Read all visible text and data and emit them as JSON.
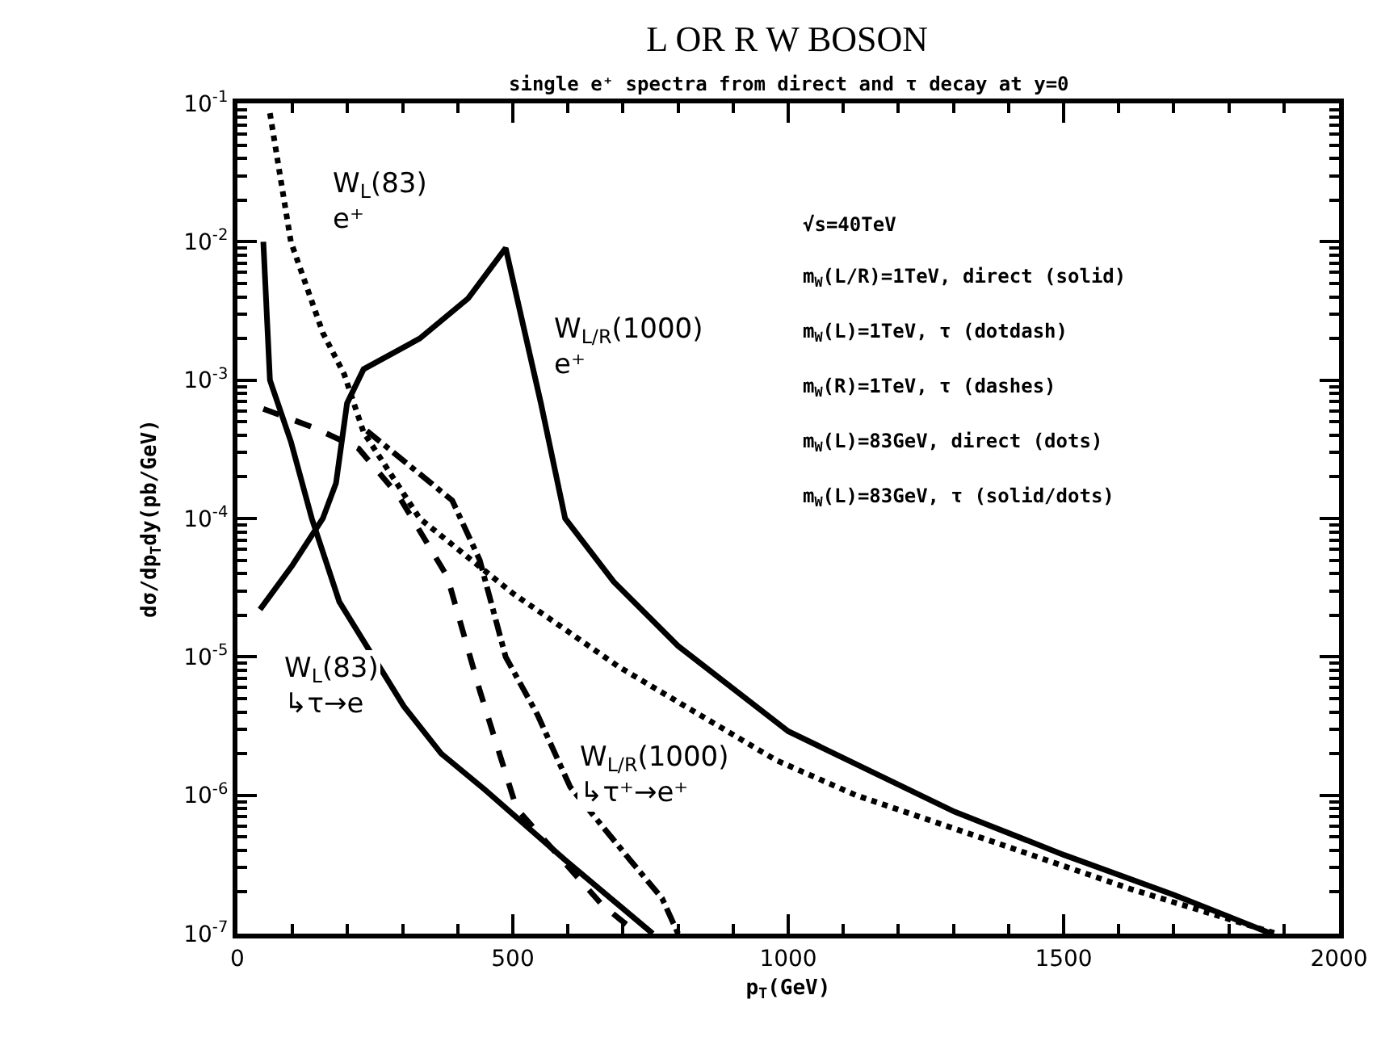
{
  "chart_data": {
    "type": "line",
    "title": "L OR R W BOSON",
    "subtitle": "single e⁺ spectra from direct and τ decay at y=0",
    "xlabel": "p$_{T}$(GeV)",
    "ylabel": "dσ/dp$_{T}$dy(pb/GeV)",
    "log": "y",
    "grid": false,
    "marker": "none",
    "xlim": [
      0,
      2000
    ],
    "xticks": [
      0,
      500,
      1000,
      1500,
      2000
    ],
    "ylim": [
      1e-07,
      0.1
    ],
    "yticks": [
      {
        "value": 1e-07,
        "label": "10$^{-7}$"
      },
      {
        "value": 1e-06,
        "label": "10$^{-6}$"
      },
      {
        "value": 1e-05,
        "label": "10$^{-5}$"
      },
      {
        "value": 0.0001,
        "label": "10$^{-4}$"
      },
      {
        "value": 0.001,
        "label": "10$^{-3}$"
      },
      {
        "value": 0.01,
        "label": "10$^{-2}$"
      },
      {
        "value": 0.1,
        "label": "10$^{-1}$"
      }
    ],
    "series": [
      {
        "color": "#000000",
        "line_style": "solid",
        "x": [
          41,
          100,
          155,
          179,
          199,
          229,
          331,
          419,
          487,
          551,
          595,
          683,
          800,
          1000,
          1302,
          1501,
          1701,
          1877
        ],
        "values": [
          2.2e-05,
          4.6e-05,
          0.0001,
          0.00018,
          0.00068,
          0.0012,
          0.002,
          0.0039,
          0.009,
          0.00068,
          0.0001,
          3.5e-05,
          1.2e-05,
          2.9e-06,
          7.6e-07,
          3.7e-07,
          1.9e-07,
          1e-07
        ]
      },
      {
        "color": "#000000",
        "line_style": "dashdot",
        "x": [
          235,
          390,
          440,
          487,
          545,
          604,
          713,
          771,
          800
        ],
        "values": [
          0.00043,
          0.000135,
          5e-05,
          1e-05,
          3.8e-06,
          1.15e-06,
          3.4e-07,
          1.8e-07,
          1e-07
        ]
      },
      {
        "color": "#000000",
        "line_style": "dashed",
        "x": [
          47,
          141,
          220,
          293,
          381,
          440,
          507,
          663,
          727
        ],
        "values": [
          0.00062,
          0.00045,
          0.00032,
          0.000145,
          3.8e-05,
          5.7e-06,
          8e-07,
          1.6e-07,
          1e-07
        ]
      },
      {
        "color": "#000000",
        "line_style": "dotted",
        "x": [
          59,
          97,
          155,
          194,
          229,
          331,
          499,
          692,
          977,
          1123,
          1387,
          1622,
          1886
        ],
        "values": [
          0.085,
          0.01,
          0.0022,
          0.0011,
          0.00042,
          0.0001,
          2.9e-05,
          8.5e-06,
          1.8e-06,
          1e-06,
          4.4e-07,
          2.1e-07,
          1e-07
        ]
      },
      {
        "color": "#000000",
        "line_style": "solid",
        "x": [
          47,
          59,
          97,
          135,
          185,
          302,
          370,
          449,
          595,
          754
        ],
        "values": [
          0.01,
          0.001,
          0.00036,
          0.0001,
          2.5e-05,
          4.4e-06,
          2e-06,
          1.1e-06,
          3.4e-07,
          1e-07
        ]
      }
    ],
    "annotations": [
      "√s=40TeV",
      "m$_{W}$(L/R)=1TeV, direct (solid)",
      "m$_{W}$(L)=1TeV, τ (dotdash)",
      "m$_{W}$(R)=1TeV, τ (dashes)",
      "m$_{W}$(L)=83GeV, direct (dots)",
      "m$_{W}$(L)=83GeV, τ (solid/dots)",
      "W$_{L}$(83)\ne⁺",
      "W$_{L/R}$(1000)\ne⁺",
      "W$_{L}$(83)\n↳τ→e",
      "W$_{L/R}$(1000)\n↳τ⁺→e⁺"
    ]
  }
}
